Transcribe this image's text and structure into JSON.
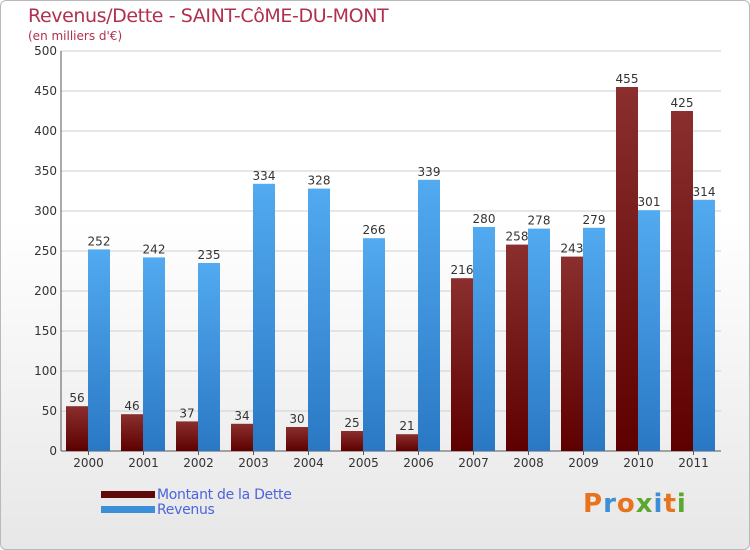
{
  "header": {
    "title": "Revenus/Dette - SAINT-CôME-DU-MONT",
    "subtitle": "(en milliers d'€)"
  },
  "legend": {
    "items": [
      {
        "label": "Montant de la Dette",
        "color": "#5e0a0a"
      },
      {
        "label": "Revenus",
        "color": "#3b8fd8"
      }
    ]
  },
  "logo": {
    "text": "Proxiti",
    "colors": [
      "#e8731c",
      "#3d8ed6",
      "#e8731c",
      "#5aa832",
      "#3d8ed6",
      "#e8731c",
      "#5aa832"
    ]
  },
  "chart_data": {
    "type": "bar",
    "categories": [
      "2000",
      "2001",
      "2002",
      "2003",
      "2004",
      "2005",
      "2006",
      "2007",
      "2008",
      "2009",
      "2010",
      "2011"
    ],
    "series": [
      {
        "name": "Montant de la Dette",
        "values": [
          56,
          46,
          37,
          34,
          30,
          25,
          21,
          216,
          258,
          243,
          455,
          425
        ],
        "color_dark": "#5e0000",
        "color_light": "#8a2e2e"
      },
      {
        "name": "Revenus",
        "values": [
          252,
          242,
          235,
          334,
          328,
          266,
          339,
          280,
          278,
          279,
          301,
          314
        ],
        "color_dark": "#2a78c4",
        "color_light": "#52aaf0"
      }
    ],
    "ylim": [
      0,
      500
    ],
    "yticks": [
      0,
      50,
      100,
      150,
      200,
      250,
      300,
      350,
      400,
      450,
      500
    ],
    "grid": true
  }
}
